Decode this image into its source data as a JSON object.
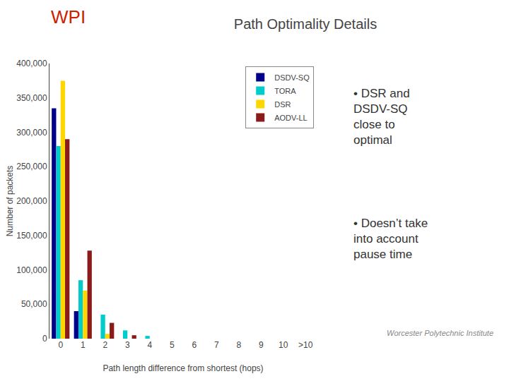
{
  "chart_data": {
    "type": "bar",
    "title": "Path Optimality Details",
    "xlabel": "Path length difference from shortest (hops)",
    "ylabel": "Number of packets",
    "categories": [
      "0",
      "1",
      "2",
      "3",
      "4",
      "5",
      "6",
      "7",
      "8",
      "9",
      "10",
      ">10"
    ],
    "series": [
      {
        "name": "DSDV-SQ",
        "color": "#00008B",
        "values": [
          335000,
          40000,
          0,
          0,
          0,
          0,
          0,
          0,
          0,
          0,
          0,
          0
        ]
      },
      {
        "name": "TORA",
        "color": "#00CCCC",
        "values": [
          280000,
          85000,
          35000,
          12000,
          4000,
          0,
          0,
          0,
          0,
          0,
          0,
          0
        ]
      },
      {
        "name": "DSR",
        "color": "#FFD700",
        "values": [
          375000,
          70000,
          7000,
          0,
          0,
          0,
          0,
          0,
          0,
          0,
          0,
          0
        ]
      },
      {
        "name": "AODV-LL",
        "color": "#8B1A1A",
        "values": [
          290000,
          128000,
          23000,
          5000,
          0,
          0,
          0,
          0,
          0,
          0,
          0,
          0
        ]
      }
    ],
    "ylim": [
      0,
      400000
    ],
    "yticks": [
      0,
      {
        "value": 50000,
        "label": "50,000"
      },
      {
        "value": 100000,
        "label": "100,000"
      },
      {
        "value": 150000,
        "label": "150,000"
      },
      {
        "value": 200000,
        "label": "200,000"
      },
      {
        "value": 250000,
        "label": "250,000"
      },
      {
        "value": 300000,
        "label": "300,000"
      },
      {
        "value": 350000,
        "label": "350,000"
      },
      {
        "value": 400000,
        "label": "400,000"
      }
    ],
    "grid": false,
    "legend": "upper right",
    "annotations": [
      "WPI",
      "• DSR and\nDSDV-SQ\nclose to\noptimal",
      "• Doesn’t take\ninto account\npause time",
      "Worcester Polytechnic Institute"
    ]
  }
}
